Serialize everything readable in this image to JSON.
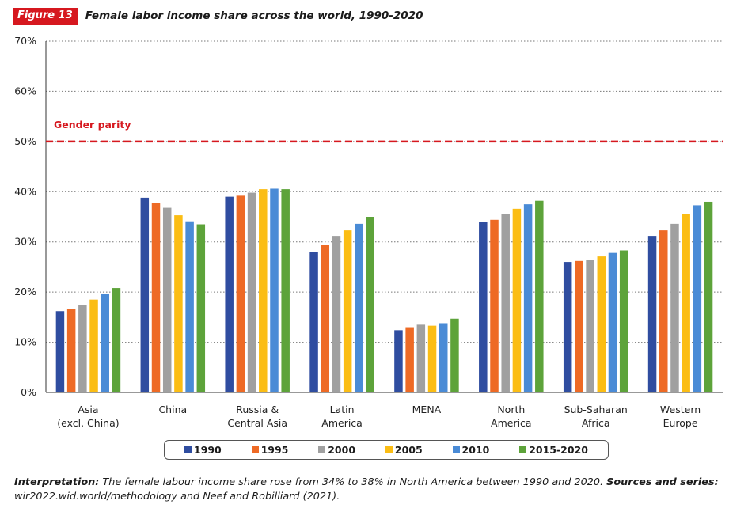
{
  "header": {
    "badge": "Figure 13",
    "title": "Female labor income share across the world, 1990-2020"
  },
  "colors": {
    "badge": "#d6181f",
    "parity_line": "#d6181f",
    "series": [
      "#2f4da0",
      "#ee6a25",
      "#a0a0a0",
      "#fbbd14",
      "#4a8bd6",
      "#5da33a"
    ]
  },
  "chart_data": {
    "type": "bar",
    "title": "Female labor income share across the world, 1990-2020",
    "xlabel": "",
    "ylabel": "",
    "ylim": [
      0,
      70
    ],
    "yticks": [
      0,
      10,
      20,
      30,
      40,
      50,
      60,
      70
    ],
    "ytick_labels": [
      "0%",
      "10%",
      "20%",
      "30%",
      "40%",
      "50%",
      "60%",
      "70%"
    ],
    "grid": "horizontal dotted",
    "legend_position": "bottom",
    "categories": [
      [
        "Asia",
        "(excl. China)"
      ],
      [
        "China"
      ],
      [
        "Russia &",
        "Central Asia"
      ],
      [
        "Latin",
        "America"
      ],
      [
        "MENA"
      ],
      [
        "North",
        "America"
      ],
      [
        "Sub-Saharan",
        "Africa"
      ],
      [
        "Western",
        "Europe"
      ]
    ],
    "series": [
      {
        "name": "1990",
        "values": [
          16.2,
          38.8,
          39.0,
          28.0,
          12.4,
          34.0,
          26.0,
          31.2
        ]
      },
      {
        "name": "1995",
        "values": [
          16.6,
          37.8,
          39.2,
          29.4,
          13.0,
          34.4,
          26.2,
          32.3
        ]
      },
      {
        "name": "2000",
        "values": [
          17.5,
          36.8,
          39.8,
          31.2,
          13.5,
          35.5,
          26.4,
          33.6
        ]
      },
      {
        "name": "2005",
        "values": [
          18.5,
          35.3,
          40.5,
          32.3,
          13.3,
          36.6,
          27.1,
          35.5
        ]
      },
      {
        "name": "2010",
        "values": [
          19.6,
          34.1,
          40.6,
          33.6,
          13.8,
          37.5,
          27.8,
          37.3
        ]
      },
      {
        "name": "2015-2020",
        "values": [
          20.8,
          33.5,
          40.5,
          35.0,
          14.7,
          38.2,
          28.3,
          38.0
        ]
      }
    ],
    "annotations": [
      {
        "text": "Gender parity",
        "y": 50
      }
    ]
  },
  "note": {
    "interp_label": "Interpretation:",
    "interp_text": " The female labour income share rose from 34% to 38% in North America between 1990 and 2020. ",
    "sources_label": "Sources and series:",
    "sources_text": " wir2022.wid.world/methodology and Neef and Robilliard (2021)."
  }
}
